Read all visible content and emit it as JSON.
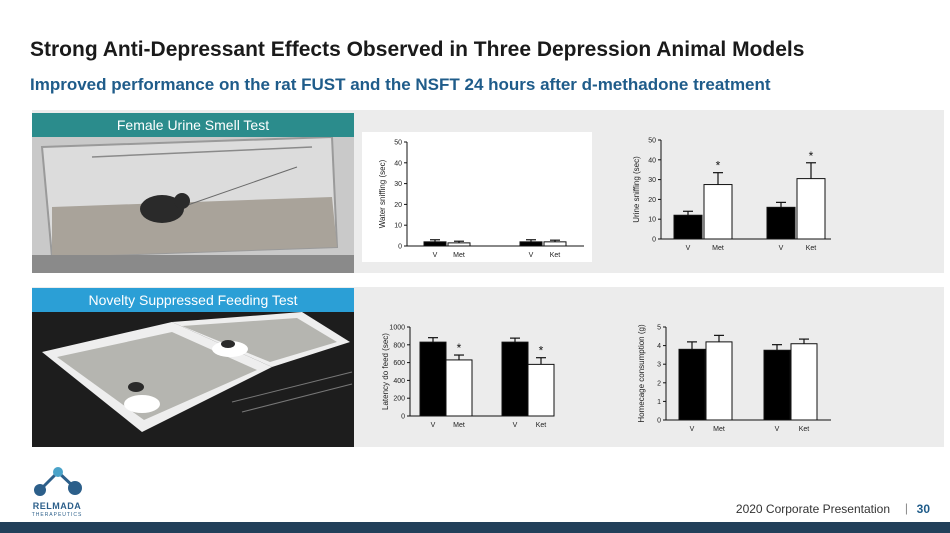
{
  "header": {
    "title": "Strong Anti-Depressant Effects Observed in Three Depression Animal Models",
    "subtitle": "Improved performance on the rat FUST and the NSFT 24 hours after d-methadone treatment"
  },
  "sections": {
    "fust_label": "Female Urine Smell Test",
    "nsft_label": "Novelty Suppressed Feeding Test"
  },
  "chart_data": [
    {
      "type": "bar",
      "ylabel": "Water sniffing (sec)",
      "ylim": [
        0,
        50
      ],
      "yticks": [
        0,
        10,
        20,
        30,
        40,
        50
      ],
      "categories": [
        "V",
        "Met",
        "V",
        "Ket"
      ],
      "values": [
        2,
        1.5,
        2,
        2
      ],
      "errors": [
        1,
        0.8,
        1,
        0.8
      ],
      "fills": [
        "#000000",
        "#ffffff",
        "#000000",
        "#ffffff"
      ],
      "significant": [
        false,
        false,
        false,
        false
      ]
    },
    {
      "type": "bar",
      "ylabel": "Urine sniffing (sec)",
      "ylim": [
        0,
        50
      ],
      "yticks": [
        0,
        10,
        20,
        30,
        40,
        50
      ],
      "categories": [
        "V",
        "Met",
        "V",
        "Ket"
      ],
      "values": [
        12,
        27.5,
        16,
        30.5
      ],
      "errors": [
        2,
        6,
        2.5,
        8
      ],
      "fills": [
        "#000000",
        "#ffffff",
        "#000000",
        "#ffffff"
      ],
      "significant": [
        false,
        true,
        false,
        true
      ]
    },
    {
      "type": "bar",
      "ylabel": "Latency do feed (sec)",
      "ylim": [
        0,
        1000
      ],
      "yticks": [
        0,
        200,
        400,
        600,
        800,
        1000
      ],
      "categories": [
        "V",
        "Met",
        "V",
        "Ket"
      ],
      "values": [
        830,
        630,
        830,
        580
      ],
      "errors": [
        50,
        55,
        45,
        75
      ],
      "fills": [
        "#000000",
        "#ffffff",
        "#000000",
        "#ffffff"
      ],
      "significant": [
        false,
        true,
        false,
        true
      ]
    },
    {
      "type": "bar",
      "ylabel": "Homecage consumption (g)",
      "ylim": [
        0,
        5
      ],
      "yticks": [
        0,
        1,
        2,
        3,
        4,
        5
      ],
      "categories": [
        "V",
        "Met",
        "V",
        "Ket"
      ],
      "values": [
        3.8,
        4.2,
        3.75,
        4.1
      ],
      "errors": [
        0.4,
        0.35,
        0.3,
        0.25
      ],
      "fills": [
        "#000000",
        "#ffffff",
        "#000000",
        "#ffffff"
      ],
      "significant": [
        false,
        false,
        false,
        false
      ]
    }
  ],
  "footer": {
    "presentation": "2020 Corporate Presentation",
    "separator": "|",
    "page": "30"
  },
  "logo": {
    "name": "RELMADA",
    "tagline": "THERAPEUTICS"
  },
  "colors": {
    "title": "#1a1a1a",
    "subtitle": "#1f5c8a",
    "fust_tab": "#2b8c8c",
    "nsft_tab": "#2b9fd6",
    "footer_bar": "#22405a"
  }
}
